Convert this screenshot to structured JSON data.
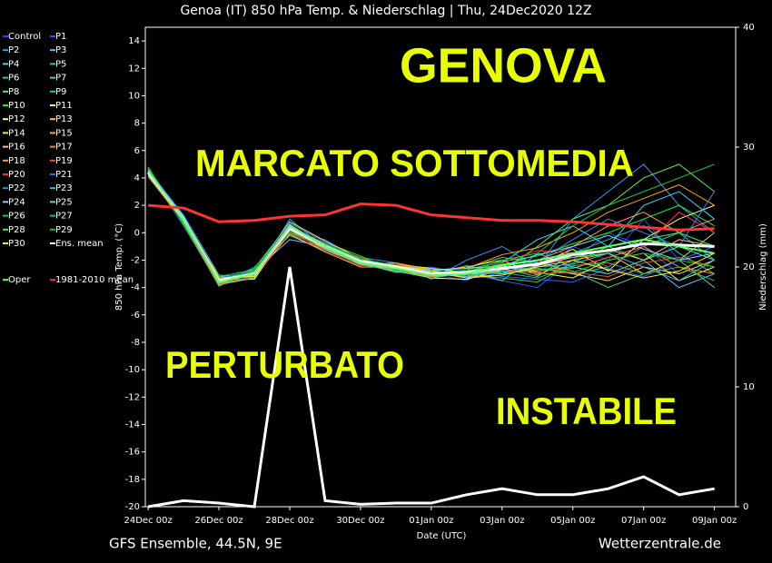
{
  "chart_data": {
    "type": "line",
    "title": "Genoa  (IT)  850 hPa Temp. & Niederschlag | Thu, 24Dec2020 12Z",
    "xlabel": "Date (UTC)",
    "ylabel": "850 hPa Temp. (°C)",
    "y2label": "Niederschlag (mm)",
    "footer_left": "GFS Ensemble, 44.5N, 9E",
    "footer_right": "Wetterzentrale.de",
    "annotations": [
      "GENOVA",
      "MARCATO SOTTOMEDIA",
      "PERTURBATO",
      "INSTABILE"
    ],
    "x": [
      0,
      1,
      2,
      3,
      4,
      5,
      6,
      7,
      8,
      9,
      10,
      11,
      12,
      13,
      14,
      15,
      16
    ],
    "xlim": [
      -0.08,
      16.6
    ],
    "xticks": [
      {
        "value": 0,
        "label": "24Dec 00z"
      },
      {
        "value": 2,
        "label": "26Dec 00z"
      },
      {
        "value": 4,
        "label": "28Dec 00z"
      },
      {
        "value": 6,
        "label": "30Dec 00z"
      },
      {
        "value": 8,
        "label": "01Jan 00z"
      },
      {
        "value": 10,
        "label": "03Jan 00z"
      },
      {
        "value": 12,
        "label": "05Jan 00z"
      },
      {
        "value": 14,
        "label": "07Jan 00z"
      },
      {
        "value": 16,
        "label": "09Jan 00z"
      }
    ],
    "ylim": [
      -20,
      15
    ],
    "yticks": [
      -20,
      -18,
      -16,
      -14,
      -12,
      -10,
      -8,
      -6,
      -4,
      -2,
      0,
      2,
      4,
      6,
      8,
      10,
      12,
      14
    ],
    "y2lim": [
      0,
      40
    ],
    "y2ticks": [
      0,
      10,
      20,
      30,
      40
    ],
    "series": [
      {
        "name": "Control",
        "color": "#2244ff",
        "values": [
          4.3,
          1,
          -3.5,
          -3,
          0.5,
          -1,
          -2,
          -2.5,
          -3,
          -3.5,
          -2,
          -3,
          -1,
          -2,
          1,
          -2,
          -1
        ]
      },
      {
        "name": "P1",
        "color": "#3355ff",
        "values": [
          4.4,
          0.5,
          -3.8,
          -2.5,
          0,
          -0.5,
          -2,
          -2.8,
          -2.5,
          -3,
          -3.5,
          -4,
          -2,
          0,
          -1,
          -3,
          -2
        ]
      },
      {
        "name": "P2",
        "color": "#3399ff",
        "values": [
          4.2,
          1.2,
          -3.2,
          -3.3,
          1,
          -1.2,
          -1.8,
          -2.2,
          -3.4,
          -2,
          -1,
          -2.5,
          1,
          3,
          5,
          2,
          0
        ]
      },
      {
        "name": "P3",
        "color": "#66bbff",
        "values": [
          4.6,
          0.8,
          -3.6,
          -2.8,
          -0.5,
          -1,
          -2.3,
          -2.7,
          -3,
          -2.8,
          -3.5,
          -1.5,
          -2.5,
          -3,
          -2,
          -4,
          -3
        ]
      },
      {
        "name": "P4",
        "color": "#33ddff",
        "values": [
          4.1,
          1.1,
          -3.4,
          -3.1,
          0.3,
          -0.8,
          -2.1,
          -2.4,
          -2.9,
          -3.2,
          -2.2,
          -0.5,
          0.5,
          -1,
          2,
          3,
          1
        ]
      },
      {
        "name": "P5",
        "color": "#22ccaa",
        "values": [
          4.5,
          0.9,
          -3.7,
          -2.9,
          0.6,
          -1.1,
          -1.9,
          -2.6,
          -3.1,
          -2.4,
          -3,
          -2,
          -3,
          -2.5,
          -1,
          0,
          -2
        ]
      },
      {
        "name": "P6",
        "color": "#33cc99",
        "values": [
          4.3,
          1.3,
          -3.1,
          -3.2,
          0.2,
          -0.9,
          -2.4,
          -2.3,
          -2.7,
          -3.3,
          -2.6,
          -3.2,
          -1.5,
          -0.5,
          0.5,
          -1.5,
          -3
        ]
      },
      {
        "name": "P7",
        "color": "#44dd88",
        "values": [
          4.7,
          0.7,
          -3.9,
          -2.7,
          -0.2,
          -1.3,
          -2.2,
          -2.9,
          -2.8,
          -2.6,
          -1.8,
          -2.2,
          -2.8,
          -4,
          -3,
          -2,
          -4
        ]
      },
      {
        "name": "P8",
        "color": "#55ee66",
        "values": [
          4.4,
          1,
          -3.3,
          -3,
          0.4,
          -1,
          -2,
          -2.5,
          -3.2,
          -3,
          -2.8,
          -1,
          1,
          2,
          4,
          5,
          3
        ]
      },
      {
        "name": "P9",
        "color": "#22dd55",
        "values": [
          4.5,
          1.1,
          -3.5,
          -3.1,
          0.1,
          -1.1,
          -2.1,
          -2.4,
          -2.9,
          -3.1,
          -3.3,
          -3.6,
          -2.2,
          -1,
          -2,
          -1,
          -1.5
        ]
      },
      {
        "name": "P10",
        "color": "#11ff11",
        "values": [
          4.8,
          0.6,
          -3.6,
          -2.6,
          0.7,
          -0.7,
          -1.7,
          -2.8,
          -3,
          -2.7,
          -2.1,
          -1.7,
          -0.8,
          0,
          1,
          2,
          0.5
        ]
      },
      {
        "name": "P11",
        "color": "#ffff33",
        "values": [
          4.2,
          1.2,
          -3.4,
          -3.4,
          0.3,
          -1.2,
          -2.2,
          -2.3,
          -2.6,
          -2.9,
          -2.4,
          -2.9,
          -3.3,
          -2,
          -1.5,
          -3.5,
          -2.5
        ]
      },
      {
        "name": "P12",
        "color": "#ffff99",
        "values": [
          4.3,
          0.9,
          -3.7,
          -2.9,
          0.5,
          -0.9,
          -2,
          -2.6,
          -3.3,
          -3.4,
          -2.7,
          -2.3,
          -1.2,
          -2.8,
          -0.5,
          1,
          2
        ]
      },
      {
        "name": "P13",
        "color": "#ffcc33",
        "values": [
          4.6,
          1,
          -3.3,
          -3.2,
          -0.1,
          -1.4,
          -2.5,
          -2.5,
          -2.8,
          -2.5,
          -2,
          -3.1,
          -2,
          -1.5,
          -3,
          -2,
          0
        ]
      },
      {
        "name": "P14",
        "color": "#ffdd55",
        "values": [
          4.4,
          1.1,
          -3.5,
          -2.8,
          0.8,
          -0.6,
          -1.9,
          -2.7,
          -3.1,
          -3,
          -2.9,
          -2.6,
          -3,
          -3.5,
          -2.5,
          -3,
          -2
        ]
      },
      {
        "name": "P15",
        "color": "#ffaa00",
        "values": [
          4.1,
          0.8,
          -3.8,
          -3.3,
          0.2,
          -1.1,
          -2.3,
          -2.2,
          -2.7,
          -2.6,
          -1.6,
          -1.1,
          0,
          1.5,
          2.5,
          3.5,
          2
        ]
      },
      {
        "name": "P16",
        "color": "#ffbb88",
        "values": [
          4.5,
          1.2,
          -3.2,
          -3,
          0.4,
          -0.8,
          -2.1,
          -2.5,
          -3,
          -3.2,
          -3.1,
          -2.4,
          -1.8,
          -1.2,
          -2,
          -0.5,
          -1
        ]
      },
      {
        "name": "P17",
        "color": "#ff8833",
        "values": [
          4.3,
          0.9,
          -3.6,
          -2.7,
          0,
          -1.2,
          -2,
          -2.8,
          -3.2,
          -2.8,
          -2.5,
          -2.8,
          -2.6,
          -1.8,
          -1,
          -2.5,
          -3
        ]
      },
      {
        "name": "P18",
        "color": "#ff9966",
        "values": [
          4.7,
          1,
          -3.4,
          -3.1,
          0.6,
          -1,
          -2.2,
          -2.4,
          -2.9,
          -3.3,
          -2.3,
          -2,
          -1,
          0.5,
          1.5,
          0,
          1
        ]
      },
      {
        "name": "P19",
        "color": "#dd5522",
        "values": [
          4.2,
          1.1,
          -3.5,
          -2.9,
          0.3,
          -0.9,
          -1.8,
          -2.6,
          -3,
          -2.9,
          -2.7,
          -3,
          -2.9,
          -3.2,
          -2.2,
          -1.8,
          -2.5
        ]
      },
      {
        "name": "P20",
        "color": "#ff3333",
        "values": [
          4.4,
          0.8,
          -3.7,
          -3.2,
          0.1,
          -1.3,
          -2.4,
          -2.3,
          -2.8,
          -3.1,
          -2.2,
          -1.3,
          -1.5,
          -2.5,
          -1,
          1.5,
          0
        ]
      },
      {
        "name": "P21",
        "color": "#2266ff",
        "values": [
          4.6,
          1.3,
          -3.3,
          -2.8,
          0.7,
          -0.7,
          -2,
          -2.7,
          -3.1,
          -2.7,
          -3.2,
          -3.4,
          -3.6,
          -2.6,
          -3.2,
          -2,
          -1
        ]
      },
      {
        "name": "P22",
        "color": "#3388ee",
        "values": [
          4.3,
          1,
          -3.6,
          -3.1,
          0.5,
          -1,
          -2.1,
          -2.5,
          -2.9,
          -3,
          -2.6,
          -2.1,
          -0.5,
          1,
          0,
          -1,
          3
        ]
      },
      {
        "name": "P23",
        "color": "#33bbee",
        "values": [
          4.5,
          0.9,
          -3.4,
          -3,
          0.2,
          -1.1,
          -2.2,
          -2.6,
          -3,
          -3.2,
          -2.8,
          -2.5,
          -2.3,
          -1.5,
          -2.5,
          -3.5,
          -2
        ]
      },
      {
        "name": "P24",
        "color": "#88ccff",
        "values": [
          4.2,
          1.1,
          -3.5,
          -2.9,
          0.4,
          -0.9,
          -2,
          -2.4,
          -2.7,
          -2.6,
          -2.4,
          -1.6,
          -1,
          -0.2,
          -1.2,
          -2,
          -1.5
        ]
      },
      {
        "name": "P25",
        "color": "#55ddbb",
        "values": [
          4.4,
          1.2,
          -3.7,
          -3.3,
          0.6,
          -1.2,
          -2.3,
          -2.8,
          -3.3,
          -2.9,
          -3,
          -2.7,
          -2.5,
          -3,
          -2,
          -1,
          -2
        ]
      },
      {
        "name": "P26",
        "color": "#11cc44",
        "values": [
          4.8,
          0.7,
          -3.2,
          -2.7,
          0,
          -0.8,
          -1.9,
          -2.4,
          -2.8,
          -3,
          -2,
          -1.5,
          0.5,
          2,
          3,
          4,
          5
        ]
      },
      {
        "name": "P27",
        "color": "#33bb66",
        "values": [
          4.3,
          1,
          -3.6,
          -3.1,
          0.3,
          -1,
          -2.2,
          -2.6,
          -3,
          -3.1,
          -2.9,
          -3.3,
          -2.4,
          -2.2,
          -3,
          -2.5,
          -3.5
        ]
      },
      {
        "name": "P28",
        "color": "#22ff66",
        "values": [
          4.5,
          1.1,
          -3.4,
          -3,
          0.5,
          -0.9,
          -2,
          -2.5,
          -2.9,
          -2.8,
          -2.3,
          -2,
          -1.8,
          -1.5,
          -0.5,
          0,
          -1
        ]
      },
      {
        "name": "P29",
        "color": "#00cc33",
        "values": [
          4.6,
          0.8,
          -3.5,
          -2.8,
          0.2,
          -1.1,
          -2.1,
          -2.7,
          -3.1,
          -3,
          -2.5,
          -2.6,
          -2.9,
          -2,
          -1.5,
          -2,
          -2.5
        ]
      },
      {
        "name": "P30",
        "color": "#ffee22",
        "values": [
          4.4,
          1,
          -3.3,
          -3.2,
          0.4,
          -1,
          -2.1,
          -2.4,
          -2.8,
          -3.3,
          -3.1,
          -2.5,
          -2,
          -2.7,
          -3.3,
          -2.8,
          -1.5
        ]
      },
      {
        "name": "Ens. mean",
        "color": "#ffffff",
        "width": 3,
        "values": [
          4.4,
          1,
          -3.5,
          -3,
          0.3,
          -1,
          -2.1,
          -2.5,
          -3,
          -2.9,
          -2.6,
          -2.3,
          -1.6,
          -1.3,
          -0.8,
          -0.9,
          -1
        ]
      },
      {
        "name": "Oper",
        "color": "#66ff66",
        "width": 2,
        "values": [
          4.5,
          1,
          -3.6,
          -3,
          0.5,
          -1,
          -2.2,
          -2.6,
          -3.1,
          -3,
          -2.4,
          -2,
          -1.5,
          -1,
          -0.5,
          -1,
          -1.5
        ]
      },
      {
        "name": "1981-2010 mean",
        "color": "#ff3333",
        "width": 3,
        "values": [
          2,
          1.8,
          0.8,
          0.9,
          1.2,
          1.3,
          2.1,
          2,
          1.3,
          1.1,
          0.9,
          0.9,
          0.8,
          0.6,
          0.4,
          0.2,
          0.3
        ]
      }
    ],
    "precip": {
      "axis": "y2",
      "color": "#ffffff",
      "width": 3,
      "values": [
        0,
        0.5,
        0.3,
        0,
        20,
        0.5,
        0.2,
        0.3,
        0.3,
        1,
        1.5,
        1,
        1,
        1.5,
        2.5,
        1,
        1.5
      ]
    }
  }
}
